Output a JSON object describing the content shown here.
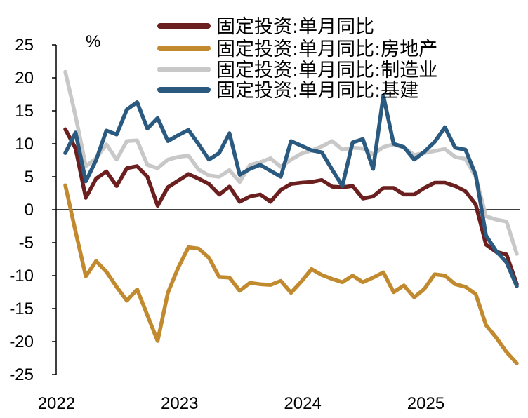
{
  "chart_data": {
    "type": "line",
    "title": "",
    "xlabel": "",
    "ylabel": "",
    "unit_label": "%",
    "ylim": [
      -25,
      25
    ],
    "yticks": [
      25,
      20,
      15,
      10,
      5,
      0,
      -5,
      -10,
      -15,
      -20,
      -25
    ],
    "ytick_labels": [
      "25",
      "20",
      "15",
      "10",
      "5",
      "0",
      "-5",
      "-10",
      "-15",
      "-20",
      "-25"
    ],
    "xtick_labels": [
      "2022",
      "2023",
      "2024",
      "2025"
    ],
    "legend_position": "top",
    "grid": false,
    "x": [
      "2022-02",
      "2022-03",
      "2022-04",
      "2022-05",
      "2022-06",
      "2022-07",
      "2022-08",
      "2022-09",
      "2022-10",
      "2022-11",
      "2022-12",
      "2023-01",
      "2023-02",
      "2023-03",
      "2023-04",
      "2023-05",
      "2023-06",
      "2023-07",
      "2023-08",
      "2023-09",
      "2023-10",
      "2023-11",
      "2023-12",
      "2024-01",
      "2024-02",
      "2024-03",
      "2024-04",
      "2024-05",
      "2024-06",
      "2024-07",
      "2024-08",
      "2024-09",
      "2024-10",
      "2024-11",
      "2024-12",
      "2025-01",
      "2025-02",
      "2025-03",
      "2025-04",
      "2025-05",
      "2025-06",
      "2025-07",
      "2025-08",
      "2025-09",
      "2025-10"
    ],
    "series": [
      {
        "name": "固定投资:单月同比",
        "color": "#6b1f1f",
        "values": [
          12.2,
          9.3,
          1.8,
          4.7,
          5.8,
          3.6,
          6.3,
          6.6,
          5.0,
          0.6,
          3.4,
          4.4,
          5.4,
          4.7,
          3.9,
          2.3,
          3.5,
          1.2,
          2.0,
          2.3,
          1.2,
          3.0,
          3.9,
          4.1,
          4.2,
          4.5,
          3.5,
          3.4,
          3.6,
          1.7,
          2.0,
          3.3,
          3.3,
          2.3,
          2.3,
          3.3,
          4.1,
          4.1,
          3.6,
          2.8,
          0.8,
          -5.3,
          -6.4,
          -6.8,
          -11.3
        ]
      },
      {
        "name": "固定投资:单月同比:房地产",
        "color": "#c28a2e",
        "values": [
          3.7,
          -3.3,
          -10.1,
          -7.8,
          -9.4,
          -11.7,
          -13.8,
          -12.1,
          -16.0,
          -19.9,
          -12.6,
          -8.8,
          -5.7,
          -5.9,
          -7.3,
          -10.2,
          -10.3,
          -12.3,
          -11.1,
          -11.3,
          -11.4,
          -10.8,
          -12.6,
          -10.9,
          -9.0,
          -9.9,
          -10.5,
          -11.0,
          -10.0,
          -11.0,
          -10.3,
          -9.5,
          -12.5,
          -11.5,
          -13.3,
          -12.0,
          -9.8,
          -10.0,
          -11.3,
          -11.7,
          -12.8,
          -17.5,
          -19.4,
          -21.6,
          -23.3
        ]
      },
      {
        "name": "固定投资:单月同比:制造业",
        "color": "#c8c8c8",
        "values": [
          20.9,
          14.2,
          6.6,
          7.8,
          9.9,
          7.6,
          10.4,
          10.5,
          6.8,
          6.3,
          7.6,
          8.0,
          8.2,
          6.1,
          5.2,
          5.0,
          6.0,
          4.2,
          6.8,
          7.2,
          7.8,
          6.5,
          7.6,
          8.5,
          9.0,
          9.6,
          10.4,
          9.1,
          9.4,
          9.3,
          8.4,
          9.5,
          9.9,
          9.4,
          8.3,
          8.6,
          8.9,
          9.2,
          8.0,
          7.7,
          5.0,
          -1.0,
          -1.5,
          -1.8,
          -6.7
        ]
      },
      {
        "name": "固定投资:单月同比:基建",
        "color": "#2a5a80",
        "values": [
          8.6,
          11.7,
          4.3,
          7.5,
          12.0,
          11.4,
          15.2,
          16.3,
          12.3,
          13.9,
          10.4,
          11.3,
          12.1,
          9.9,
          7.6,
          8.6,
          11.6,
          5.3,
          6.2,
          6.8,
          5.9,
          5.0,
          10.4,
          9.7,
          9.0,
          8.7,
          6.1,
          3.6,
          10.2,
          10.7,
          6.2,
          17.3,
          10.0,
          9.5,
          7.6,
          8.8,
          10.3,
          12.5,
          9.4,
          9.1,
          5.3,
          -3.9,
          -6.3,
          -8.0,
          -11.6
        ]
      }
    ]
  }
}
